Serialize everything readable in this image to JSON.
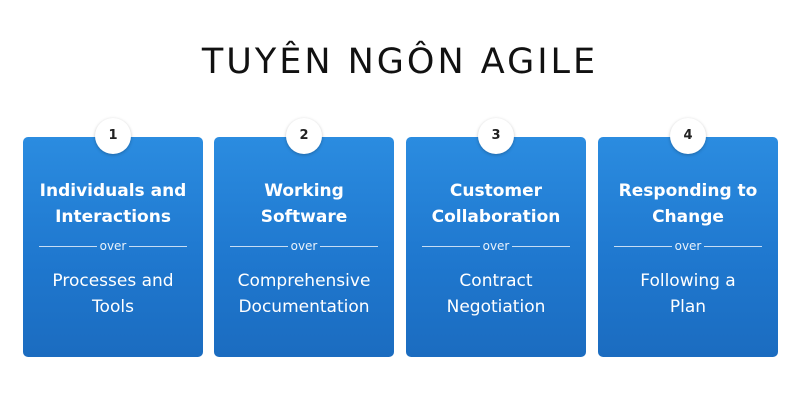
{
  "title": "TUYÊN NGÔN AGILE",
  "divider_word": "over",
  "cards": [
    {
      "number": "1",
      "value_lines": [
        "Individuals and",
        "Interactions"
      ],
      "over": "over",
      "lesser_lines": [
        "Processes and",
        "Tools"
      ]
    },
    {
      "number": "2",
      "value_lines": [
        "Working",
        "Software"
      ],
      "over": "over",
      "lesser_lines": [
        "Comprehensive",
        "Documentation"
      ]
    },
    {
      "number": "3",
      "value_lines": [
        "Customer",
        "Collaboration"
      ],
      "over": "over",
      "lesser_lines": [
        "Contract",
        "Negotiation"
      ]
    },
    {
      "number": "4",
      "value_lines": [
        "Responding to",
        "Change"
      ],
      "over": "over",
      "lesser_lines": [
        "Following a",
        "Plan"
      ]
    }
  ],
  "colors": {
    "card_blue": "#1f78cf",
    "title_text": "#111111",
    "badge_bg": "#ffffff"
  }
}
